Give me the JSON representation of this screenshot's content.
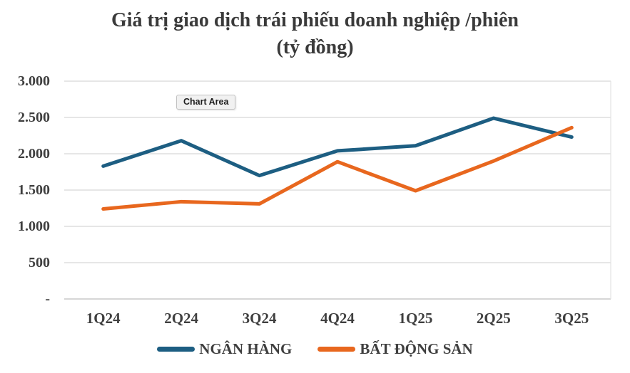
{
  "title": "Giá trị giao dịch trái phiếu doanh nghiệp /phiên",
  "subtitle": "(tỷ đồng)",
  "tooltip": {
    "label": "Chart Area"
  },
  "colors": {
    "bank_line": "#1d5e82",
    "real_estate_line": "#e8671e",
    "gridline": "#d8d8d8",
    "axis_line": "#bdbdbd",
    "plot_right_border": "#e2e2e2",
    "text": "#3f3f3f",
    "title_text": "#3a3a3a"
  },
  "chart_data": {
    "type": "line",
    "title": "Giá trị giao dịch trái phiếu doanh nghiệp /phiên",
    "subtitle": "(tỷ đồng)",
    "categories": [
      "1Q24",
      "2Q24",
      "3Q24",
      "4Q24",
      "1Q25",
      "2Q25",
      "3Q25"
    ],
    "series": [
      {
        "name": "NGÂN HÀNG",
        "color": "#1d5e82",
        "values": [
          1830,
          2180,
          1700,
          2040,
          2110,
          2490,
          2230
        ]
      },
      {
        "name": "BẤT ĐỘNG SẢN",
        "color": "#e8671e",
        "values": [
          1240,
          1340,
          1310,
          1890,
          1490,
          1900,
          2360
        ]
      }
    ],
    "ylim": [
      0,
      3000
    ],
    "yticks": [
      {
        "value": 0,
        "label": "-"
      },
      {
        "value": 500,
        "label": "500"
      },
      {
        "value": 1000,
        "label": "1.000"
      },
      {
        "value": 1500,
        "label": "1.500"
      },
      {
        "value": 2000,
        "label": "2.000"
      },
      {
        "value": 2500,
        "label": "2.500"
      },
      {
        "value": 3000,
        "label": "3.000"
      }
    ],
    "grid": true,
    "legend_position": "bottom",
    "line_width": 5
  }
}
